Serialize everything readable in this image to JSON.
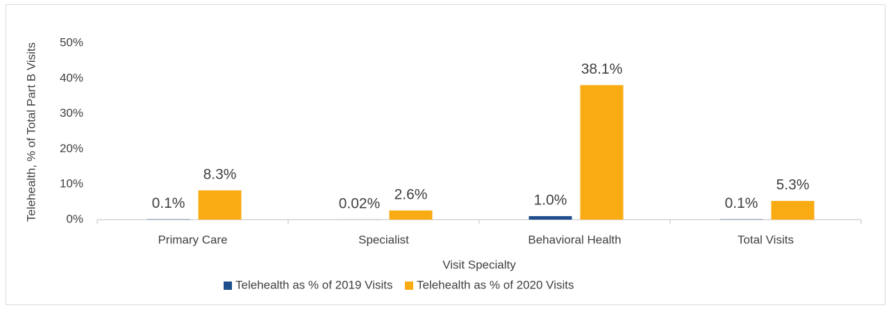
{
  "chart_data": {
    "type": "bar",
    "x_label": "Visit Specialty",
    "y_label": "Telehealth, % of Total Part B Visits",
    "categories": [
      "Primary Care",
      "Specialist",
      "Behavioral Health",
      "Total Visits"
    ],
    "series": [
      {
        "name": "Telehealth as % of 2019 Visits",
        "color": "#1f4e8c",
        "values": [
          0.1,
          0.02,
          1.0,
          0.1
        ],
        "value_labels": [
          "0.1%",
          "0.02%",
          "1.0%",
          "0.1%"
        ]
      },
      {
        "name": "Telehealth as % of 2020 Visits",
        "color": "#f9ab14",
        "values": [
          8.3,
          2.6,
          38.1,
          5.3
        ],
        "value_labels": [
          "8.3%",
          "2.6%",
          "38.1%",
          "5.3%"
        ]
      }
    ],
    "ylim": [
      0,
      50
    ],
    "yticks": [
      {
        "value": 0,
        "label": "0%"
      },
      {
        "value": 10,
        "label": "10%"
      },
      {
        "value": 20,
        "label": "20%"
      },
      {
        "value": 30,
        "label": "30%"
      },
      {
        "value": 40,
        "label": "40%"
      },
      {
        "value": 50,
        "label": "50%"
      }
    ],
    "grid": false,
    "legend": "bottom"
  }
}
